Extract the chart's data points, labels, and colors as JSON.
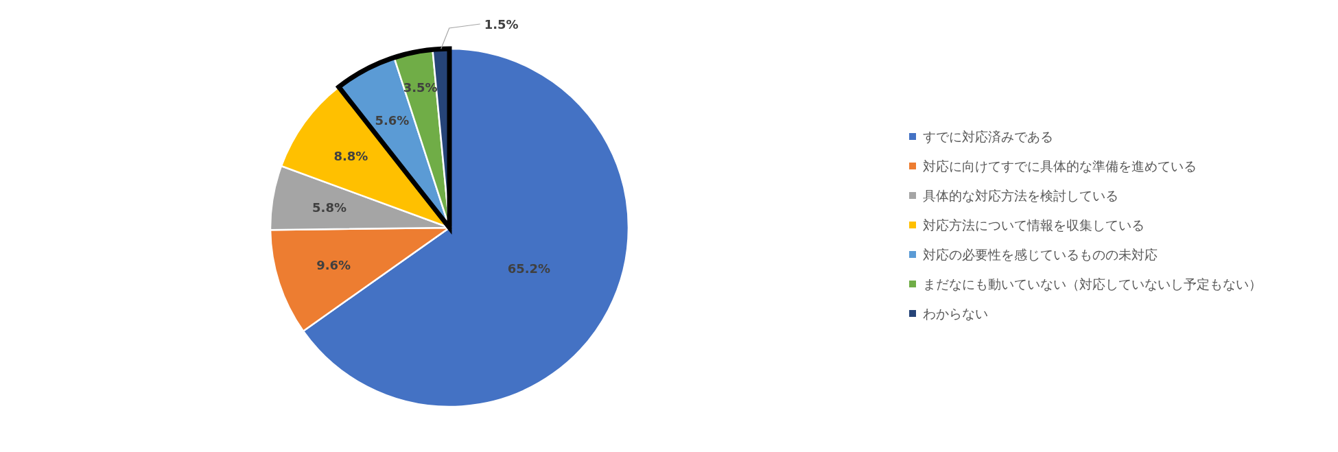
{
  "chart_data": {
    "type": "pie",
    "categories": [
      "すでに対応済みである",
      "対応に向けてすでに具体的な準備を進めている",
      "具体的な対応方法を検討している",
      "対応方法について情報を収集している",
      "対応の必要性を感じているものの未対応",
      "まだなにも動いていない（対応していないし予定もない）",
      "わからない"
    ],
    "values": [
      65.2,
      9.6,
      5.8,
      8.8,
      5.6,
      3.5,
      1.5
    ],
    "value_labels": [
      "65.2%",
      "9.6%",
      "5.8%",
      "8.8%",
      "5.6%",
      "3.5%",
      "1.5%"
    ],
    "colors": [
      "#4472c4",
      "#ed7d31",
      "#a5a5a5",
      "#ffc000",
      "#5b9bd5",
      "#70ad47",
      "#264478"
    ],
    "legend": "right"
  }
}
